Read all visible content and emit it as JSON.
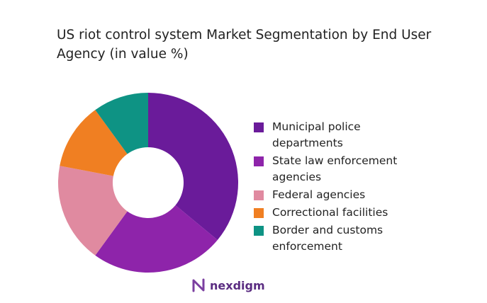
{
  "chart_data": {
    "type": "donut",
    "title": "US riot control system Market Segmentation by End User Agency (in value %)",
    "categories": [
      "Municipal police departments",
      "State law enforcement agencies",
      "Federal agencies",
      "Correctional facilities",
      "Border and customs enforcement"
    ],
    "values": [
      36,
      24,
      18,
      12,
      10
    ],
    "colors": [
      "#6a1b9a",
      "#8e24aa",
      "#e08aa0",
      "#f07f22",
      "#0e9384"
    ],
    "legend": "right"
  },
  "logo": "nexdigm"
}
